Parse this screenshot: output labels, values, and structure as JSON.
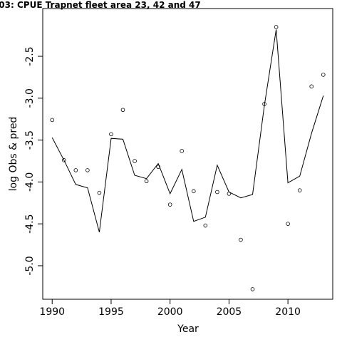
{
  "chart_data": {
    "type": "line",
    "title": "03: CPUE Trapnet fleet area 23, 42 and 47",
    "xlabel": "Year",
    "ylabel": "log Obs & pred",
    "xlim": [
      1989.2,
      2013.8
    ],
    "ylim": [
      -5.4,
      -1.93
    ],
    "x_ticks": [
      1990,
      1995,
      2000,
      2005,
      2010
    ],
    "y_ticks": [
      -5.0,
      -4.5,
      -4.0,
      -3.5,
      -3.0,
      -2.5
    ],
    "x_tick_labels": [
      "1990",
      "1995",
      "2000",
      "2005",
      "2010"
    ],
    "y_tick_labels": [
      "-5.0",
      "-4.5",
      "-4.0",
      "-3.5",
      "-3.0",
      "-2.5"
    ],
    "grid": false,
    "series": [
      {
        "kind": "line",
        "x": [
          1990,
          1991,
          1992,
          1993,
          1994,
          1995,
          1996,
          1997,
          1998,
          1999,
          2000,
          2001,
          2002,
          2003,
          2004,
          2005,
          2006,
          2007,
          2008,
          2009,
          2010,
          2011,
          2012,
          2013
        ],
        "y": [
          -3.47,
          -3.74,
          -4.03,
          -4.07,
          -4.6,
          -3.48,
          -3.49,
          -3.92,
          -3.96,
          -3.78,
          -4.14,
          -3.85,
          -4.47,
          -4.42,
          -3.8,
          -4.12,
          -4.19,
          -4.15,
          -3.09,
          -2.18,
          -4.01,
          -3.93,
          -3.42,
          -2.97
        ],
        "color": "#000000"
      },
      {
        "kind": "scatter",
        "marker": "open-circle",
        "x": [
          1990,
          1991,
          1992,
          1993,
          1994,
          1995,
          1996,
          1997,
          1998,
          1999,
          2000,
          2001,
          2002,
          2003,
          2004,
          2005,
          2006,
          2007,
          2008,
          2009,
          2010,
          2011,
          2012,
          2013
        ],
        "y": [
          -3.26,
          -3.74,
          -3.86,
          -3.86,
          -4.13,
          -3.43,
          -3.14,
          -3.75,
          -3.99,
          -3.82,
          -4.27,
          -3.63,
          -4.11,
          -4.52,
          -4.12,
          -4.14,
          -4.69,
          -5.28,
          -3.07,
          -2.15,
          -4.5,
          -4.1,
          -2.86,
          -2.72
        ],
        "color": "#000000"
      }
    ]
  }
}
